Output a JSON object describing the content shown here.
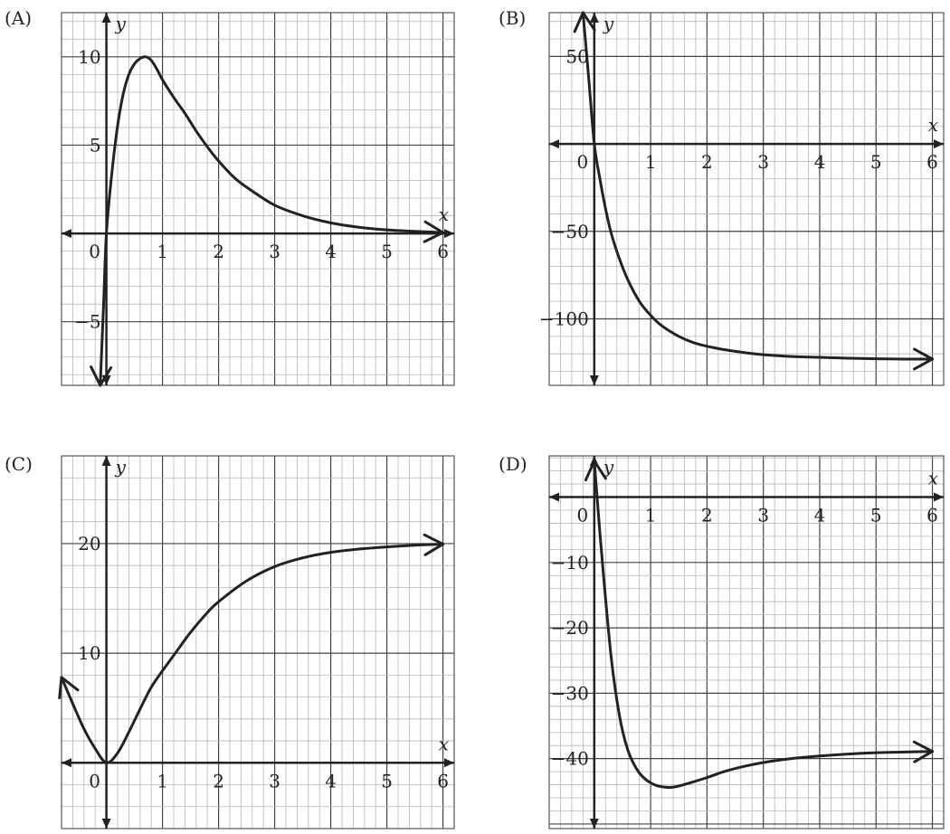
{
  "chart_data": [
    {
      "type": "line",
      "panel_label": "(A)",
      "xlabel": "x",
      "ylabel": "y",
      "xlim": [
        -0.8,
        6.2
      ],
      "ylim": [
        -8.6,
        12.5
      ],
      "grid_minor_x": 0.2,
      "grid_minor_y": 1,
      "grid_major_x": 1,
      "grid_major_y": 5,
      "x_ticks": [
        {
          "value": 0,
          "label": "0"
        },
        {
          "value": 1,
          "label": "1"
        },
        {
          "value": 2,
          "label": "2"
        },
        {
          "value": 3,
          "label": "3"
        },
        {
          "value": 4,
          "label": "4"
        },
        {
          "value": 5,
          "label": "5"
        },
        {
          "value": 6,
          "label": "6"
        }
      ],
      "y_ticks": [
        {
          "value": 10,
          "label": "10"
        },
        {
          "value": 5,
          "label": "5"
        },
        {
          "value": -5,
          "label": "−5"
        }
      ],
      "series": [
        {
          "x": [
            -0.11,
            -0.05,
            0,
            0.1,
            0.2,
            0.3,
            0.4,
            0.5,
            0.6,
            0.7,
            0.8,
            0.9,
            1.0,
            1.2,
            1.4,
            1.6,
            1.8,
            2.0,
            2.3,
            2.6,
            3.0,
            3.5,
            4.0,
            4.5,
            5.0,
            5.5,
            6.0
          ],
          "y": [
            -8.6,
            -4.0,
            0,
            3.5,
            6.1,
            7.9,
            9.0,
            9.6,
            9.9,
            10.0,
            9.8,
            9.3,
            8.7,
            7.7,
            6.8,
            5.8,
            4.9,
            4.1,
            3.1,
            2.4,
            1.6,
            1.0,
            0.6,
            0.35,
            0.2,
            0.12,
            0.05
          ]
        }
      ]
    },
    {
      "type": "line",
      "panel_label": "(B)",
      "xlabel": "x",
      "ylabel": "y",
      "xlim": [
        -0.8,
        6.2
      ],
      "ylim": [
        -138,
        75
      ],
      "grid_minor_x": 0.2,
      "grid_minor_y": 10,
      "grid_major_x": 1,
      "grid_major_y": 50,
      "x_ticks": [
        {
          "value": 0,
          "label": "0"
        },
        {
          "value": 1,
          "label": "1"
        },
        {
          "value": 2,
          "label": "2"
        },
        {
          "value": 3,
          "label": "3"
        },
        {
          "value": 4,
          "label": "4"
        },
        {
          "value": 5,
          "label": "5"
        },
        {
          "value": 6,
          "label": "6"
        }
      ],
      "y_ticks": [
        {
          "value": 50,
          "label": "50"
        },
        {
          "value": -50,
          "label": "−50"
        },
        {
          "value": -100,
          "label": "−100"
        }
      ],
      "series": [
        {
          "x": [
            -0.2,
            -0.1,
            0,
            0.1,
            0.2,
            0.3,
            0.45,
            0.6,
            0.8,
            1.0,
            1.2,
            1.5,
            1.8,
            2.2,
            2.6,
            3.0,
            3.5,
            4.0,
            4.5,
            5.0,
            5.5,
            6.0
          ],
          "y": [
            75,
            38,
            0,
            -20,
            -37,
            -51,
            -66,
            -78,
            -90,
            -98,
            -104,
            -110,
            -114,
            -117,
            -119,
            -120.5,
            -121.5,
            -122,
            -122.5,
            -122.8,
            -123,
            -123
          ]
        }
      ]
    },
    {
      "type": "line",
      "panel_label": "(C)",
      "xlabel": "x",
      "ylabel": "y",
      "xlim": [
        -0.8,
        6.2
      ],
      "ylim": [
        -6,
        28
      ],
      "grid_minor_x": 0.2,
      "grid_minor_y": 2,
      "grid_major_x": 1,
      "grid_major_y": 10,
      "x_ticks": [
        {
          "value": 0,
          "label": "0"
        },
        {
          "value": 1,
          "label": "1"
        },
        {
          "value": 2,
          "label": "2"
        },
        {
          "value": 3,
          "label": "3"
        },
        {
          "value": 4,
          "label": "4"
        },
        {
          "value": 5,
          "label": "5"
        },
        {
          "value": 6,
          "label": "6"
        }
      ],
      "y_ticks": [
        {
          "value": 20,
          "label": "20"
        },
        {
          "value": 10,
          "label": "10"
        }
      ],
      "series": [
        {
          "x": [
            -0.8,
            -0.6,
            -0.4,
            -0.2,
            0,
            0.2,
            0.4,
            0.6,
            0.8,
            1.0,
            1.2,
            1.5,
            1.8,
            2.0,
            2.5,
            3.0,
            3.5,
            4.0,
            4.5,
            5.0,
            5.5,
            6.0
          ],
          "y": [
            7.8,
            5.4,
            3.1,
            1.3,
            0,
            0.9,
            2.8,
            4.9,
            6.9,
            8.4,
            9.8,
            11.9,
            13.7,
            14.7,
            16.6,
            17.9,
            18.7,
            19.2,
            19.5,
            19.7,
            19.85,
            19.95
          ]
        }
      ]
    },
    {
      "type": "line",
      "panel_label": "(D)",
      "xlabel": "x",
      "ylabel": "y",
      "xlim": [
        -0.8,
        6.2
      ],
      "ylim": [
        -50.7,
        6.3
      ],
      "grid_minor_x": 0.2,
      "grid_minor_y": 2,
      "grid_major_x": 1,
      "grid_major_y": 10,
      "x_ticks": [
        {
          "value": 0,
          "label": "0"
        },
        {
          "value": 1,
          "label": "1"
        },
        {
          "value": 2,
          "label": "2"
        },
        {
          "value": 3,
          "label": "3"
        },
        {
          "value": 4,
          "label": "4"
        },
        {
          "value": 5,
          "label": "5"
        },
        {
          "value": 6,
          "label": "6"
        }
      ],
      "y_ticks": [
        {
          "value": -10,
          "label": "−10"
        },
        {
          "value": -20,
          "label": "−20"
        },
        {
          "value": -30,
          "label": "−30"
        },
        {
          "value": -40,
          "label": "−40"
        }
      ],
      "series": [
        {
          "x": [
            0,
            0.05,
            0.1,
            0.2,
            0.3,
            0.4,
            0.5,
            0.6,
            0.7,
            0.8,
            0.9,
            1.0,
            1.1,
            1.2,
            1.35,
            1.5,
            1.7,
            2.0,
            2.3,
            2.6,
            3.0,
            3.5,
            4.0,
            4.5,
            5.0,
            5.5,
            6.0
          ],
          "y": [
            5.5,
            0,
            -5.5,
            -15.5,
            -24.5,
            -31,
            -35.7,
            -38.8,
            -40.8,
            -42.2,
            -43.1,
            -43.7,
            -44.1,
            -44.3,
            -44.4,
            -44.2,
            -43.7,
            -42.9,
            -42.0,
            -41.3,
            -40.6,
            -40.0,
            -39.6,
            -39.3,
            -39.1,
            -39.0,
            -38.9
          ]
        }
      ]
    }
  ]
}
